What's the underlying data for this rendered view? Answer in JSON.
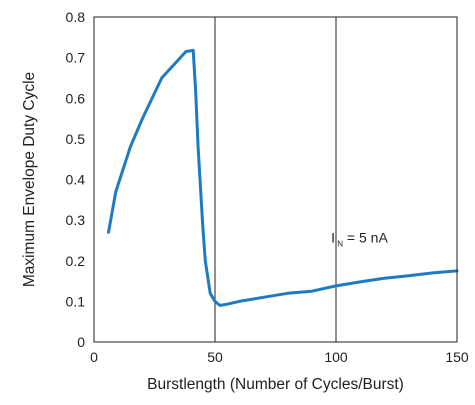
{
  "chart_data": {
    "type": "line",
    "title": "",
    "xlabel": "Burstlength (Number of Cycles/Burst)",
    "ylabel": "Maximum Envelope Duty Cycle",
    "xlim": [
      0,
      150
    ],
    "ylim": [
      0,
      0.8
    ],
    "xticks": [
      0,
      50,
      100,
      150
    ],
    "yticks": [
      0,
      0.1,
      0.2,
      0.3,
      0.4,
      0.5,
      0.6,
      0.7,
      0.8
    ],
    "xtick_labels": [
      "0",
      "50",
      "100",
      "150"
    ],
    "ytick_labels": [
      "0",
      "0.1",
      "0.2",
      "0.3",
      "0.4",
      "0.5",
      "0.6",
      "0.7",
      "0.8"
    ],
    "grid": "vertical lines at x = 50 and x = 100",
    "legend": "none",
    "line_color": "#1f7bc1",
    "annotation": {
      "main": "I",
      "subscript": "IN",
      "rest": " = 5 nA",
      "x": 98,
      "y": 0.245
    },
    "series": [
      {
        "x": [
          6,
          9,
          15,
          20,
          28,
          38,
          41,
          42,
          43,
          44,
          45,
          46,
          48,
          50,
          52,
          55,
          60,
          70,
          80,
          90,
          100,
          110,
          120,
          130,
          140,
          150
        ],
        "y": [
          0.27,
          0.37,
          0.48,
          0.55,
          0.65,
          0.715,
          0.718,
          0.62,
          0.48,
          0.38,
          0.28,
          0.2,
          0.12,
          0.1,
          0.09,
          0.093,
          0.1,
          0.11,
          0.12,
          0.125,
          0.138,
          0.148,
          0.157,
          0.163,
          0.17,
          0.175
        ]
      }
    ]
  }
}
